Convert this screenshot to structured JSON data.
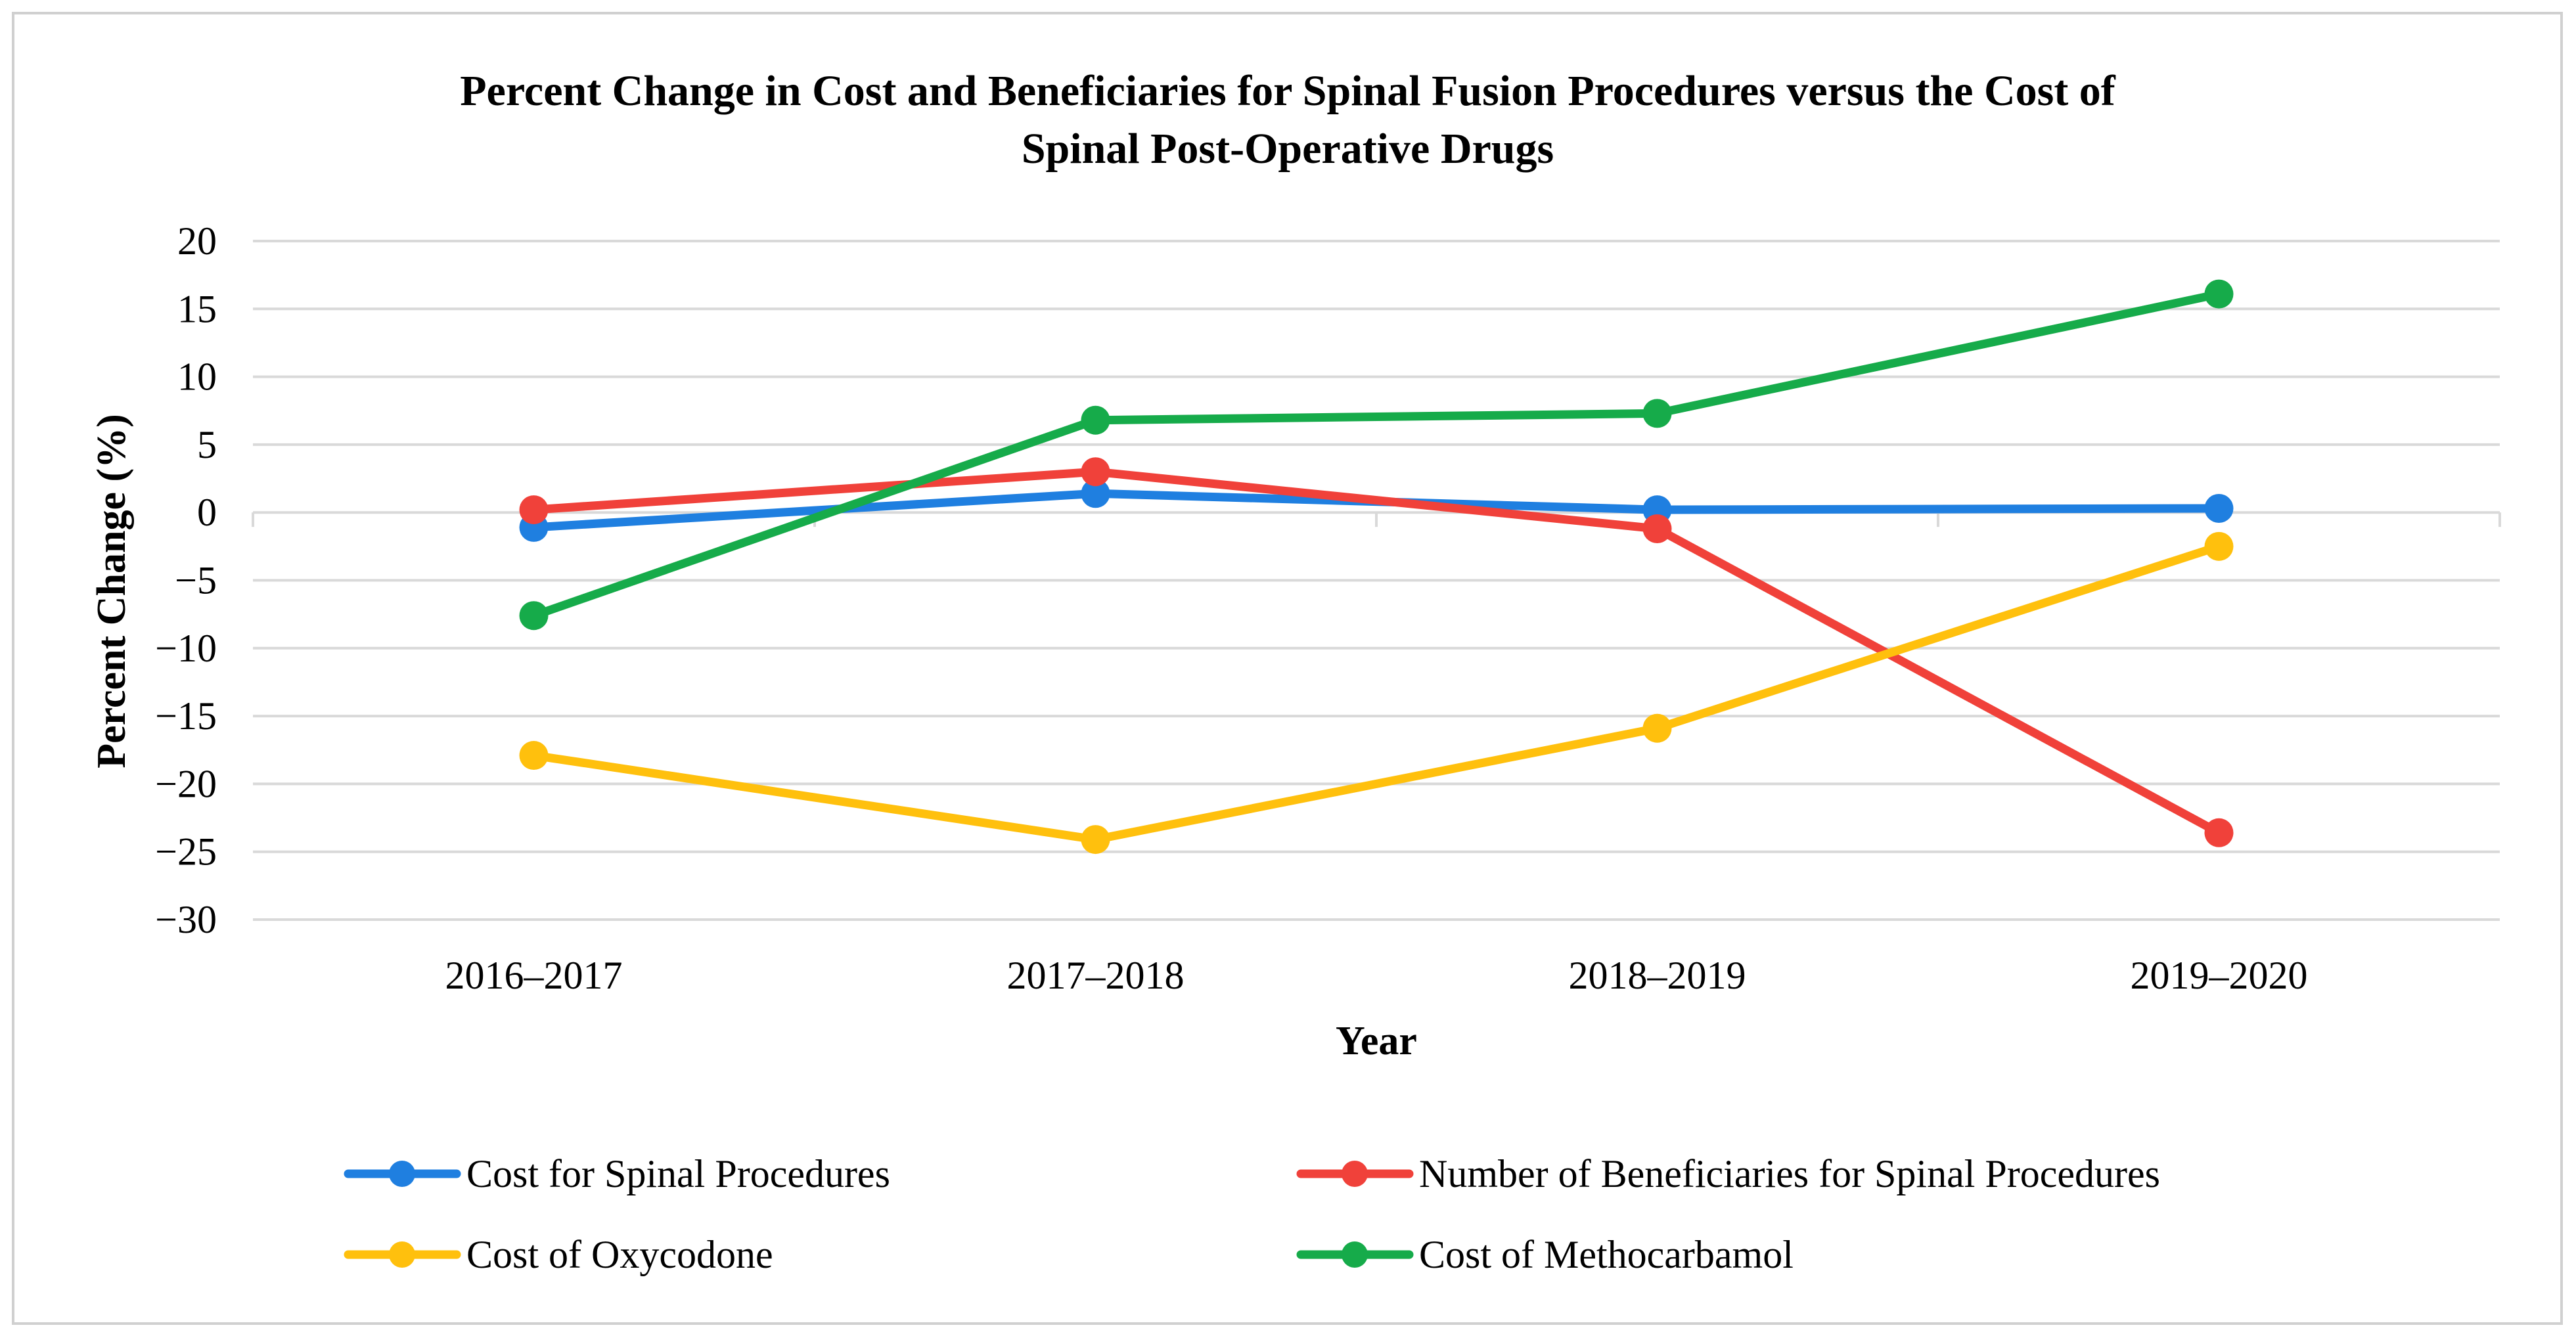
{
  "chart_data": {
    "type": "line",
    "title": [
      "Percent Change in Cost and Beneficiaries for Spinal Fusion Procedures versus the Cost of",
      "Spinal Post-Operative Drugs"
    ],
    "xlabel": "Year",
    "ylabel": "Percent Change (%)",
    "categories": [
      "2016–2017",
      "2017–2018",
      "2018–2019",
      "2019–2020"
    ],
    "ylim": [
      -30,
      20
    ],
    "yticks": [
      20,
      15,
      10,
      5,
      0,
      -5,
      -10,
      -15,
      -20,
      -25,
      -30
    ],
    "ytick_labels": [
      "20",
      "15",
      "10",
      "5",
      "0",
      "−5",
      "−10",
      "−15",
      "−20",
      "−25",
      "−30"
    ],
    "grid": true,
    "legend_position": "bottom",
    "series": [
      {
        "name": "Cost for Spinal Procedures",
        "color": "#1f7fe0",
        "values": [
          -1.1,
          1.4,
          0.2,
          0.3
        ]
      },
      {
        "name": "Number of Beneficiaries for Spinal Procedures",
        "color": "#f0413a",
        "values": [
          0.2,
          3.0,
          -1.2,
          -23.6
        ]
      },
      {
        "name": "Cost of Oxycodone",
        "color": "#ffc00d",
        "values": [
          -17.9,
          -24.1,
          -15.9,
          -2.5
        ]
      },
      {
        "name": "Cost of Methocarbamol",
        "color": "#16ab4a",
        "values": [
          -7.6,
          6.8,
          7.3,
          16.1
        ]
      }
    ]
  }
}
